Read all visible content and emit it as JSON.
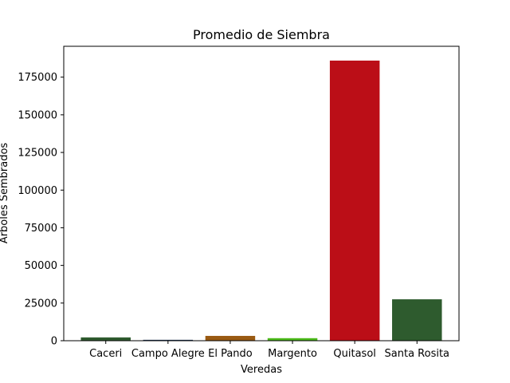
{
  "chart_data": {
    "type": "bar",
    "title": "Promedio de Siembra",
    "xlabel": "Veredas",
    "ylabel": "Arboles Sembrados",
    "categories": [
      "Caceri",
      "Campo Alegre",
      "El Pando",
      "Margento",
      "Quitasol",
      "Santa Rosita"
    ],
    "values": [
      2200,
      600,
      3200,
      1700,
      186000,
      27500
    ],
    "colors": [
      "#2e5b2e",
      "#1f3a5a",
      "#9a5a12",
      "#4dbb1c",
      "#bb0e17",
      "#2e5b2e"
    ],
    "yticks": [
      0,
      25000,
      50000,
      75000,
      100000,
      125000,
      150000,
      175000
    ],
    "ylim": [
      0,
      195500
    ],
    "grid": false,
    "legend": "none"
  }
}
